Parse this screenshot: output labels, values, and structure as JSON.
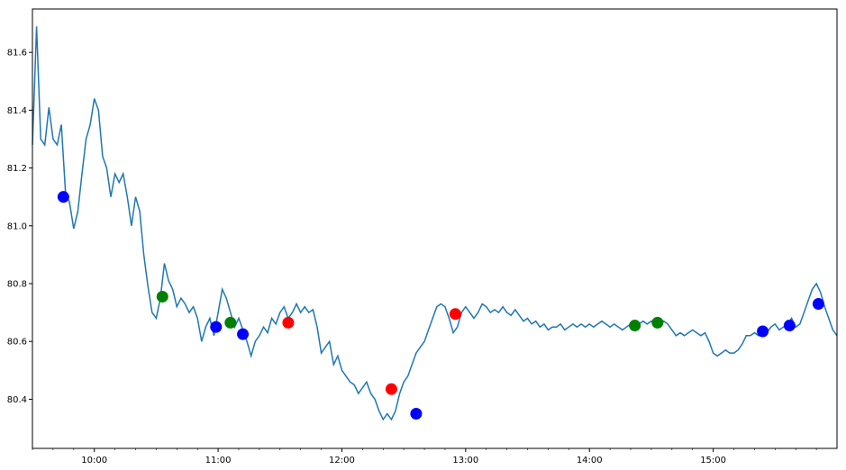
{
  "chart_data": {
    "type": "line",
    "title": "",
    "xlabel": "",
    "ylabel": "",
    "x_domain": [
      "09:30",
      "16:00"
    ],
    "ylim": [
      80.23,
      81.75
    ],
    "grid": false,
    "x_ticks": [
      {
        "time": "10:00",
        "label": "10:00"
      },
      {
        "time": "11:00",
        "label": "11:00"
      },
      {
        "time": "12:00",
        "label": "12:00"
      },
      {
        "time": "13:00",
        "label": "13:00"
      },
      {
        "time": "14:00",
        "label": "14:00"
      },
      {
        "time": "15:00",
        "label": "15:00"
      }
    ],
    "y_ticks": [
      {
        "value": 80.4,
        "label": "80.4"
      },
      {
        "value": 80.6,
        "label": "80.6"
      },
      {
        "value": 80.8,
        "label": "80.8"
      },
      {
        "value": 81.0,
        "label": "81.0"
      },
      {
        "value": 81.2,
        "label": "81.2"
      },
      {
        "value": 81.4,
        "label": "81.4"
      },
      {
        "value": 81.6,
        "label": "81.6"
      }
    ],
    "line_color": "#1f77b4",
    "series": [
      {
        "type": "line",
        "points": [
          [
            "09:30",
            81.28
          ],
          [
            "09:32",
            81.69
          ],
          [
            "09:34",
            81.3
          ],
          [
            "09:36",
            81.28
          ],
          [
            "09:38",
            81.41
          ],
          [
            "09:40",
            81.3
          ],
          [
            "09:42",
            81.28
          ],
          [
            "09:44",
            81.35
          ],
          [
            "09:46",
            81.12
          ],
          [
            "09:48",
            81.08
          ],
          [
            "09:50",
            80.99
          ],
          [
            "09:52",
            81.05
          ],
          [
            "09:54",
            81.18
          ],
          [
            "09:56",
            81.3
          ],
          [
            "09:58",
            81.35
          ],
          [
            "10:00",
            81.44
          ],
          [
            "10:02",
            81.4
          ],
          [
            "10:04",
            81.24
          ],
          [
            "10:06",
            81.2
          ],
          [
            "10:08",
            81.1
          ],
          [
            "10:10",
            81.18
          ],
          [
            "10:12",
            81.15
          ],
          [
            "10:14",
            81.18
          ],
          [
            "10:16",
            81.1
          ],
          [
            "10:18",
            81.0
          ],
          [
            "10:20",
            81.1
          ],
          [
            "10:22",
            81.05
          ],
          [
            "10:24",
            80.9
          ],
          [
            "10:26",
            80.79
          ],
          [
            "10:28",
            80.7
          ],
          [
            "10:30",
            80.68
          ],
          [
            "10:32",
            80.75
          ],
          [
            "10:34",
            80.87
          ],
          [
            "10:36",
            80.81
          ],
          [
            "10:38",
            80.78
          ],
          [
            "10:40",
            80.72
          ],
          [
            "10:42",
            80.75
          ],
          [
            "10:44",
            80.73
          ],
          [
            "10:46",
            80.7
          ],
          [
            "10:48",
            80.72
          ],
          [
            "10:50",
            80.68
          ],
          [
            "10:52",
            80.6
          ],
          [
            "10:54",
            80.65
          ],
          [
            "10:56",
            80.68
          ],
          [
            "10:58",
            80.62
          ],
          [
            "11:00",
            80.7
          ],
          [
            "11:02",
            80.78
          ],
          [
            "11:04",
            80.75
          ],
          [
            "11:06",
            80.7
          ],
          [
            "11:08",
            80.65
          ],
          [
            "11:10",
            80.68
          ],
          [
            "11:12",
            80.64
          ],
          [
            "11:14",
            80.6
          ],
          [
            "11:16",
            80.55
          ],
          [
            "11:18",
            80.6
          ],
          [
            "11:20",
            80.62
          ],
          [
            "11:22",
            80.65
          ],
          [
            "11:24",
            80.63
          ],
          [
            "11:26",
            80.68
          ],
          [
            "11:28",
            80.66
          ],
          [
            "11:30",
            80.7
          ],
          [
            "11:32",
            80.72
          ],
          [
            "11:34",
            80.68
          ],
          [
            "11:36",
            80.7
          ],
          [
            "11:38",
            80.73
          ],
          [
            "11:40",
            80.7
          ],
          [
            "11:42",
            80.72
          ],
          [
            "11:44",
            80.7
          ],
          [
            "11:46",
            80.71
          ],
          [
            "11:48",
            80.65
          ],
          [
            "11:50",
            80.56
          ],
          [
            "11:52",
            80.58
          ],
          [
            "11:54",
            80.6
          ],
          [
            "11:56",
            80.52
          ],
          [
            "11:58",
            80.55
          ],
          [
            "12:00",
            80.5
          ],
          [
            "12:02",
            80.48
          ],
          [
            "12:04",
            80.46
          ],
          [
            "12:06",
            80.45
          ],
          [
            "12:08",
            80.42
          ],
          [
            "12:10",
            80.44
          ],
          [
            "12:12",
            80.46
          ],
          [
            "12:14",
            80.42
          ],
          [
            "12:16",
            80.4
          ],
          [
            "12:18",
            80.36
          ],
          [
            "12:20",
            80.33
          ],
          [
            "12:22",
            80.35
          ],
          [
            "12:24",
            80.33
          ],
          [
            "12:26",
            80.36
          ],
          [
            "12:28",
            80.42
          ],
          [
            "12:30",
            80.46
          ],
          [
            "12:32",
            80.48
          ],
          [
            "12:34",
            80.52
          ],
          [
            "12:36",
            80.56
          ],
          [
            "12:38",
            80.58
          ],
          [
            "12:40",
            80.6
          ],
          [
            "12:42",
            80.64
          ],
          [
            "12:44",
            80.68
          ],
          [
            "12:46",
            80.72
          ],
          [
            "12:48",
            80.73
          ],
          [
            "12:50",
            80.72
          ],
          [
            "12:52",
            80.68
          ],
          [
            "12:54",
            80.63
          ],
          [
            "12:56",
            80.65
          ],
          [
            "12:58",
            80.7
          ],
          [
            "13:00",
            80.72
          ],
          [
            "13:02",
            80.7
          ],
          [
            "13:04",
            80.68
          ],
          [
            "13:06",
            80.7
          ],
          [
            "13:08",
            80.73
          ],
          [
            "13:10",
            80.72
          ],
          [
            "13:12",
            80.7
          ],
          [
            "13:14",
            80.71
          ],
          [
            "13:16",
            80.7
          ],
          [
            "13:18",
            80.72
          ],
          [
            "13:20",
            80.7
          ],
          [
            "13:22",
            80.69
          ],
          [
            "13:24",
            80.71
          ],
          [
            "13:26",
            80.69
          ],
          [
            "13:28",
            80.67
          ],
          [
            "13:30",
            80.68
          ],
          [
            "13:32",
            80.66
          ],
          [
            "13:34",
            80.67
          ],
          [
            "13:36",
            80.65
          ],
          [
            "13:38",
            80.66
          ],
          [
            "13:40",
            80.64
          ],
          [
            "13:42",
            80.65
          ],
          [
            "13:44",
            80.65
          ],
          [
            "13:46",
            80.66
          ],
          [
            "13:48",
            80.64
          ],
          [
            "13:50",
            80.65
          ],
          [
            "13:52",
            80.66
          ],
          [
            "13:54",
            80.65
          ],
          [
            "13:56",
            80.66
          ],
          [
            "13:58",
            80.65
          ],
          [
            "14:00",
            80.66
          ],
          [
            "14:02",
            80.65
          ],
          [
            "14:04",
            80.66
          ],
          [
            "14:06",
            80.67
          ],
          [
            "14:08",
            80.66
          ],
          [
            "14:10",
            80.65
          ],
          [
            "14:12",
            80.66
          ],
          [
            "14:14",
            80.65
          ],
          [
            "14:16",
            80.64
          ],
          [
            "14:18",
            80.65
          ],
          [
            "14:20",
            80.66
          ],
          [
            "14:22",
            80.65
          ],
          [
            "14:24",
            80.66
          ],
          [
            "14:26",
            80.67
          ],
          [
            "14:28",
            80.66
          ],
          [
            "14:30",
            80.67
          ],
          [
            "14:32",
            80.66
          ],
          [
            "14:34",
            80.65
          ],
          [
            "14:36",
            80.67
          ],
          [
            "14:38",
            80.66
          ],
          [
            "14:40",
            80.64
          ],
          [
            "14:42",
            80.62
          ],
          [
            "14:44",
            80.63
          ],
          [
            "14:46",
            80.62
          ],
          [
            "14:48",
            80.63
          ],
          [
            "14:50",
            80.64
          ],
          [
            "14:52",
            80.63
          ],
          [
            "14:54",
            80.62
          ],
          [
            "14:56",
            80.63
          ],
          [
            "14:58",
            80.6
          ],
          [
            "15:00",
            80.56
          ],
          [
            "15:02",
            80.55
          ],
          [
            "15:04",
            80.56
          ],
          [
            "15:06",
            80.57
          ],
          [
            "15:08",
            80.56
          ],
          [
            "15:10",
            80.56
          ],
          [
            "15:12",
            80.57
          ],
          [
            "15:14",
            80.59
          ],
          [
            "15:16",
            80.62
          ],
          [
            "15:18",
            80.62
          ],
          [
            "15:20",
            80.63
          ],
          [
            "15:22",
            80.62
          ],
          [
            "15:24",
            80.64
          ],
          [
            "15:26",
            80.63
          ],
          [
            "15:28",
            80.65
          ],
          [
            "15:30",
            80.66
          ],
          [
            "15:32",
            80.64
          ],
          [
            "15:34",
            80.65
          ],
          [
            "15:36",
            80.66
          ],
          [
            "15:38",
            80.68
          ],
          [
            "15:40",
            80.65
          ],
          [
            "15:42",
            80.66
          ],
          [
            "15:44",
            80.7
          ],
          [
            "15:46",
            80.74
          ],
          [
            "15:48",
            80.78
          ],
          [
            "15:50",
            80.8
          ],
          [
            "15:52",
            80.77
          ],
          [
            "15:54",
            80.72
          ],
          [
            "15:56",
            80.68
          ],
          [
            "15:58",
            80.64
          ],
          [
            "16:00",
            80.62
          ]
        ]
      }
    ],
    "markers": [
      {
        "time": "09:45",
        "value": 81.1,
        "color": "#0000ff"
      },
      {
        "time": "10:33",
        "value": 80.755,
        "color": "#008000"
      },
      {
        "time": "10:59",
        "value": 80.65,
        "color": "#0000ff"
      },
      {
        "time": "11:06",
        "value": 80.665,
        "color": "#008000"
      },
      {
        "time": "11:12",
        "value": 80.625,
        "color": "#0000ff"
      },
      {
        "time": "11:34",
        "value": 80.665,
        "color": "#ff0000"
      },
      {
        "time": "12:24",
        "value": 80.435,
        "color": "#ff0000"
      },
      {
        "time": "12:36",
        "value": 80.35,
        "color": "#0000ff"
      },
      {
        "time": "12:55",
        "value": 80.695,
        "color": "#ff0000"
      },
      {
        "time": "14:22",
        "value": 80.655,
        "color": "#008000"
      },
      {
        "time": "14:33",
        "value": 80.665,
        "color": "#008000"
      },
      {
        "time": "15:24",
        "value": 80.635,
        "color": "#0000ff"
      },
      {
        "time": "15:37",
        "value": 80.655,
        "color": "#0000ff"
      },
      {
        "time": "15:51",
        "value": 80.73,
        "color": "#0000ff"
      }
    ]
  }
}
